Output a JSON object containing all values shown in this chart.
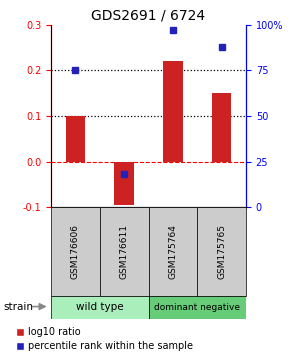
{
  "title": "GDS2691 / 6724",
  "samples": [
    "GSM176606",
    "GSM176611",
    "GSM175764",
    "GSM175765"
  ],
  "log10_ratio": [
    0.1,
    -0.095,
    0.22,
    0.15
  ],
  "percentile_rank": [
    75,
    18,
    97,
    88
  ],
  "ylim": [
    -0.1,
    0.3
  ],
  "yticks_left": [
    -0.1,
    0.0,
    0.1,
    0.2,
    0.3
  ],
  "yticks_right": [
    0,
    25,
    50,
    75,
    100
  ],
  "bar_color": "#cc2222",
  "dot_color": "#2222bb",
  "bar_width": 0.4,
  "legend_red_label": "log10 ratio",
  "legend_blue_label": "percentile rank within the sample",
  "group1_label": "wild type",
  "group1_color": "#aaeebb",
  "group2_label": "dominant negative",
  "group2_color": "#66cc77",
  "sample_box_color": "#cccccc",
  "title_fontsize": 10
}
